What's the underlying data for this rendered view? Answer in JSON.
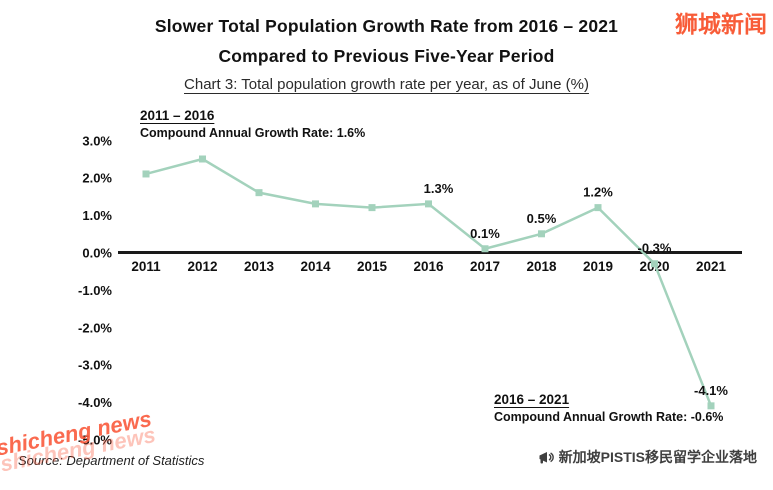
{
  "watermarks": {
    "top_right": "狮城新闻",
    "bottom_left": "shicheng news",
    "color": "#f85c38"
  },
  "header": {
    "title_line1": "Slower Total Population Growth Rate from 2016 – 2021",
    "title_line2": "Compared to Previous Five-Year Period",
    "subtitle": "Chart 3: Total population growth rate per year, as of June (%)"
  },
  "annotations": {
    "first_period_label": "2011 – 2016",
    "first_period_cagr": "Compound Annual Growth Rate: 1.6%",
    "second_period_label": "2016 – 2021",
    "second_period_cagr": "Compound Annual Growth Rate: -0.6%"
  },
  "footer": {
    "source": "Source: Department of Statistics",
    "brand": "新加坡PISTIS移民留学企业落地",
    "brand_icon": "megaphone-icon"
  },
  "chart_data": {
    "type": "line",
    "title": "Total population growth rate per year, as of June (%)",
    "x": [
      "2011",
      "2012",
      "2013",
      "2014",
      "2015",
      "2016",
      "2017",
      "2018",
      "2019",
      "2020",
      "2021"
    ],
    "values": [
      2.1,
      2.5,
      1.6,
      1.3,
      1.2,
      1.3,
      0.1,
      0.5,
      1.2,
      -0.3,
      -4.1
    ],
    "point_labels": [
      "",
      "",
      "",
      "",
      "",
      "1.3%",
      "0.1%",
      "0.5%",
      "1.2%",
      "-0.3%",
      "-4.1%"
    ],
    "ylim": [
      -5.0,
      3.0
    ],
    "ytick_labels": [
      "3.0%",
      "2.0%",
      "1.0%",
      "0.0%",
      "-1.0%",
      "-2.0%",
      "-3.0%",
      "-4.0%",
      "-5.0%"
    ],
    "xlabel": "",
    "ylabel": "",
    "grid": false,
    "legend": "none",
    "line_color": "#a3d2bc",
    "marker": "square",
    "zero_line_color": "#1a1a1a"
  }
}
